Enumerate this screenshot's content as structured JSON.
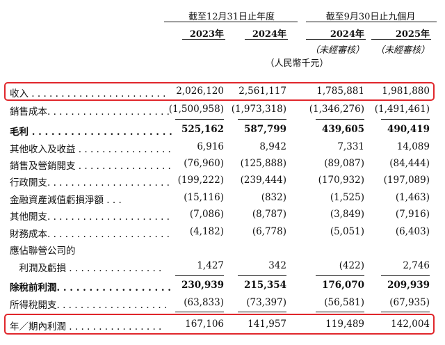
{
  "header": {
    "group_fy": "截至12月31日止年度",
    "group_9m": "截至9月30日止九個月",
    "years": [
      "2023年",
      "2024年",
      "2024年",
      "2025年"
    ],
    "unaudited": [
      "（未經審核）",
      "（未經審核）"
    ],
    "currency": "（人民幣千元）"
  },
  "rows": [
    {
      "label": "收入 . . . . . . . . . . . . . . . . . . . . . . .",
      "values": [
        "2,026,120",
        "2,561,117",
        "1,785,881",
        "1,981,880"
      ]
    },
    {
      "label": "銷售成本. . . . . . . . . . . . . . . . . . . . .",
      "values": [
        "(1,500,958)",
        "(1,973,318)",
        "(1,346,276)",
        "(1,491,461)"
      ]
    },
    {
      "label": "毛利 . . . . . . . . . . . . . . . . . . . . . .",
      "values": [
        "525,162",
        "587,799",
        "439,605",
        "490,419"
      ]
    },
    {
      "label": "其他收入及收益 . . . . . . . . . . . . . . . .",
      "values": [
        "6,916",
        "8,942",
        "7,331",
        "14,089"
      ]
    },
    {
      "label": "銷售及營銷開支 . . . . . . . . . . . . . . . .",
      "values": [
        "(76,960)",
        "(125,888)",
        "(89,087)",
        "(84,444)"
      ]
    },
    {
      "label": "行政開支. . . . . . . . . . . . . . . . . . . . .",
      "values": [
        "(199,222)",
        "(239,444)",
        "(170,932)",
        "(197,089)"
      ]
    },
    {
      "label": "金融資產減值虧損淨額 . . .",
      "values": [
        "(15,116)",
        "(832)",
        "(1,525)",
        "(1,463)"
      ]
    },
    {
      "label": "其他開支. . . . . . . . . . . . . . . . . . . . .",
      "values": [
        "(7,086)",
        "(8,787)",
        "(3,849)",
        "(7,916)"
      ]
    },
    {
      "label": "財務成本. . . . . . . . . . . . . . . . . . . . .",
      "values": [
        "(4,182)",
        "(6,778)",
        "(5,051)",
        "(6,403)"
      ]
    },
    {
      "label": "應佔聯營公司的",
      "values": [
        "",
        "",
        "",
        ""
      ]
    },
    {
      "label": "　利潤及虧損 . . . . . . . . . . . . . . . .",
      "values": [
        "1,427",
        "342",
        "(422)",
        "2,746"
      ]
    },
    {
      "label": "除稅前利潤. . . . . . . . . . . . . . . . . .",
      "values": [
        "230,939",
        "215,354",
        "176,070",
        "209,939"
      ]
    },
    {
      "label": "所得稅開支. . . . . . . . . . . . . . . . . . .",
      "values": [
        "(63,833)",
        "(73,397)",
        "(56,581)",
        "(67,935)"
      ]
    },
    {
      "label": "年／期內利潤 . . . . . . . . . . . . . . . .",
      "values": [
        "167,106",
        "141,957",
        "119,489",
        "142,004"
      ]
    }
  ],
  "highlight_color": "#e0262b"
}
